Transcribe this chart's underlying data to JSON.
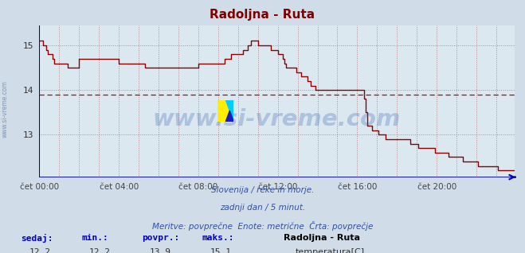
{
  "title": "Radoljna - Ruta",
  "title_color": "#800000",
  "bg_color": "#d0dce8",
  "plot_bg_color": "#dce8f0",
  "grid_color": "#c08080",
  "avg_line_value": 13.9,
  "avg_line_color": "#c00000",
  "line_color": "#8b0000",
  "line_width": 1.0,
  "xlim": [
    0,
    287
  ],
  "ylim": [
    12.05,
    15.45
  ],
  "yticks": [
    13,
    14,
    15
  ],
  "xtick_labels": [
    "čet 00:00",
    "čet 04:00",
    "čet 08:00",
    "čet 12:00",
    "čet 16:00",
    "čet 20:00"
  ],
  "xtick_positions": [
    0,
    48,
    96,
    144,
    192,
    240
  ],
  "axis_color": "#0000bb",
  "bottom_text1": "Slovenija / reke in morje.",
  "bottom_text2": "zadnji dan / 5 minut.",
  "bottom_text3": "Meritve: povprečne  Enote: metrične  Črta: povprečje",
  "bottom_text_color": "#3050a0",
  "watermark": "www.si-vreme.com",
  "watermark_color": "#3060b0",
  "watermark_alpha": 0.28,
  "left_label": "www.si-vreme.com",
  "footer_label_color": "#0000bb",
  "footer_bold_labels": [
    "sedaj:",
    "min.:",
    "povpr.:",
    "maks.:"
  ],
  "footer_values": [
    "12,2",
    "12,2",
    "13,9",
    "15,1"
  ],
  "footer_series_name": "Radoljna - Ruta",
  "footer_series_desc": "temperatura[C]",
  "legend_color": "#cc0000",
  "temperature_data": [
    15.1,
    15.1,
    15.0,
    15.0,
    14.9,
    14.8,
    14.8,
    14.8,
    14.7,
    14.6,
    14.6,
    14.6,
    14.6,
    14.6,
    14.6,
    14.6,
    14.6,
    14.5,
    14.5,
    14.5,
    14.5,
    14.5,
    14.5,
    14.5,
    14.7,
    14.7,
    14.7,
    14.7,
    14.7,
    14.7,
    14.7,
    14.7,
    14.7,
    14.7,
    14.7,
    14.7,
    14.7,
    14.7,
    14.7,
    14.7,
    14.7,
    14.7,
    14.7,
    14.7,
    14.7,
    14.7,
    14.7,
    14.7,
    14.6,
    14.6,
    14.6,
    14.6,
    14.6,
    14.6,
    14.6,
    14.6,
    14.6,
    14.6,
    14.6,
    14.6,
    14.6,
    14.6,
    14.6,
    14.6,
    14.5,
    14.5,
    14.5,
    14.5,
    14.5,
    14.5,
    14.5,
    14.5,
    14.5,
    14.5,
    14.5,
    14.5,
    14.5,
    14.5,
    14.5,
    14.5,
    14.5,
    14.5,
    14.5,
    14.5,
    14.5,
    14.5,
    14.5,
    14.5,
    14.5,
    14.5,
    14.5,
    14.5,
    14.5,
    14.5,
    14.5,
    14.5,
    14.6,
    14.6,
    14.6,
    14.6,
    14.6,
    14.6,
    14.6,
    14.6,
    14.6,
    14.6,
    14.6,
    14.6,
    14.6,
    14.6,
    14.6,
    14.6,
    14.7,
    14.7,
    14.7,
    14.7,
    14.8,
    14.8,
    14.8,
    14.8,
    14.8,
    14.8,
    14.8,
    14.9,
    14.9,
    14.9,
    15.0,
    15.0,
    15.1,
    15.1,
    15.1,
    15.1,
    15.0,
    15.0,
    15.0,
    15.0,
    15.0,
    15.0,
    15.0,
    15.0,
    14.9,
    14.9,
    14.9,
    14.9,
    14.8,
    14.8,
    14.8,
    14.7,
    14.6,
    14.5,
    14.5,
    14.5,
    14.5,
    14.5,
    14.5,
    14.4,
    14.4,
    14.4,
    14.3,
    14.3,
    14.3,
    14.3,
    14.2,
    14.2,
    14.1,
    14.1,
    14.1,
    14.0,
    14.0,
    14.0,
    14.0,
    14.0,
    14.0,
    14.0,
    14.0,
    14.0,
    14.0,
    14.0,
    14.0,
    14.0,
    14.0,
    14.0,
    14.0,
    14.0,
    14.0,
    14.0,
    14.0,
    14.0,
    14.0,
    14.0,
    14.0,
    14.0,
    14.0,
    14.0,
    14.0,
    14.0,
    13.8,
    13.5,
    13.2,
    13.2,
    13.2,
    13.1,
    13.1,
    13.1,
    13.1,
    13.0,
    13.0,
    13.0,
    13.0,
    12.9,
    12.9,
    12.9,
    12.9,
    12.9,
    12.9,
    12.9,
    12.9,
    12.9,
    12.9,
    12.9,
    12.9,
    12.9,
    12.9,
    12.9,
    12.8,
    12.8,
    12.8,
    12.8,
    12.8,
    12.7,
    12.7,
    12.7,
    12.7,
    12.7,
    12.7,
    12.7,
    12.7,
    12.7,
    12.7,
    12.6,
    12.6,
    12.6,
    12.6,
    12.6,
    12.6,
    12.6,
    12.6,
    12.5,
    12.5,
    12.5,
    12.5,
    12.5,
    12.5,
    12.5,
    12.5,
    12.5,
    12.4,
    12.4,
    12.4,
    12.4,
    12.4,
    12.4,
    12.4,
    12.4,
    12.4,
    12.3,
    12.3,
    12.3,
    12.3,
    12.3,
    12.3,
    12.3,
    12.3,
    12.3,
    12.3,
    12.3,
    12.3,
    12.2,
    12.2,
    12.2,
    12.2,
    12.2,
    12.2,
    12.2,
    12.2,
    12.2,
    12.2,
    12.2
  ]
}
